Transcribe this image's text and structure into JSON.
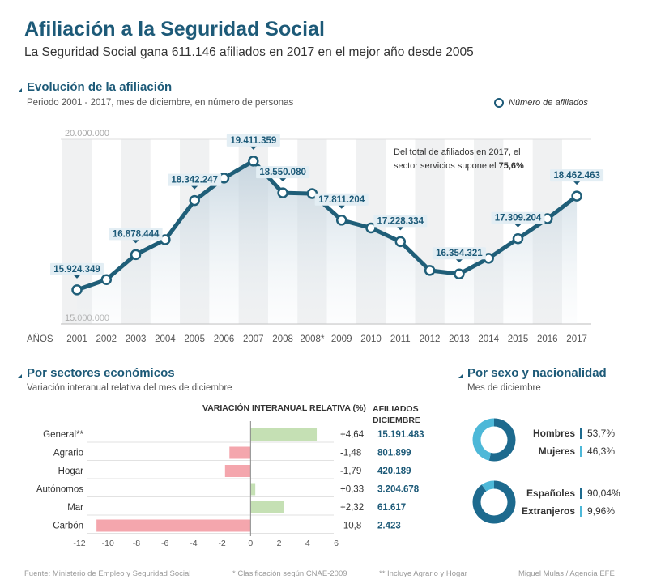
{
  "header": {
    "title": "Afiliación a la Seguridad Social",
    "subtitle": "La Seguridad Social gana 611.146 afiliados en 2017 en el mejor año desde 2005"
  },
  "evolution": {
    "title": "Evolución de la afiliación",
    "subtitle": "Periodo 2001 - 2017, mes de diciembre, en número de personas",
    "legend": "Número de afiliados",
    "note_prefix": "Del total de afiliados en 2017, el sector servicios supone el ",
    "note_value": "75,6%"
  },
  "chart_data": [
    {
      "type": "line",
      "title": "Evolución de la afiliación",
      "xlabel": "AÑOS",
      "ylim": [
        15000000,
        20000000
      ],
      "ytick_labels": [
        "20.000.000",
        "15.000.000"
      ],
      "categories": [
        "2001",
        "2002",
        "2003",
        "2004",
        "2005",
        "2006",
        "2007",
        "2008",
        "2008*",
        "2009",
        "2010",
        "2011",
        "2012",
        "2013",
        "2014",
        "2015",
        "2016",
        "2017"
      ],
      "values": [
        15924349,
        16200000,
        16878444,
        17280000,
        18342247,
        18950000,
        19411359,
        18550080,
        18530000,
        17811204,
        17600000,
        17228334,
        16450000,
        16354321,
        16780000,
        17309204,
        17850000,
        18462463
      ],
      "labels": [
        {
          "index": 0,
          "text": "15.924.349"
        },
        {
          "index": 2,
          "text": "16.878.444"
        },
        {
          "index": 4,
          "text": "18.342.247"
        },
        {
          "index": 6,
          "text": "19.411.359"
        },
        {
          "index": 7,
          "text": "18.550.080"
        },
        {
          "index": 9,
          "text": "17.811.204"
        },
        {
          "index": 11,
          "text": "17.228.334"
        },
        {
          "index": 13,
          "text": "16.354.321"
        },
        {
          "index": 15,
          "text": "17.309.204"
        },
        {
          "index": 17,
          "text": "18.462.463"
        }
      ]
    },
    {
      "type": "bar",
      "title": "Por sectores económicos",
      "xlabel": "VARIACIÓN INTERANUAL RELATIVA (%)",
      "xlim": [
        -12,
        6
      ],
      "xticks": [
        -12,
        -10,
        -8,
        -6,
        -4,
        -2,
        0,
        2,
        4,
        6
      ],
      "xtick_labels": [
        "-12",
        "-10",
        "-8",
        "-6",
        "-4",
        "-2",
        "0",
        "2",
        "4",
        "6"
      ],
      "categories": [
        "General**",
        "Agrario",
        "Hogar",
        "Autónomos",
        "Mar",
        "Carbón"
      ],
      "values": [
        4.64,
        -1.48,
        -1.79,
        0.33,
        2.32,
        -10.8
      ],
      "value_labels": [
        "+4,64",
        "-1,48",
        "-1,79",
        "+0,33",
        "+2,32",
        "-10,8"
      ],
      "afiliados_header": "AFILIADOS DICIEMBRE",
      "afiliados": [
        "15.191.483",
        "801.899",
        "420.189",
        "3.204.678",
        "61.617",
        "2.423"
      ],
      "colors": {
        "positive": "#c5e0b4",
        "negative": "#f4a6ad"
      }
    },
    {
      "type": "pie",
      "title": "Por sexo",
      "categories": [
        "Hombres",
        "Mujeres"
      ],
      "values": [
        53.7,
        46.3
      ],
      "value_labels": [
        "53,7%",
        "46,3%"
      ],
      "colors": [
        "#1d6a8e",
        "#4db8d8"
      ]
    },
    {
      "type": "pie",
      "title": "Por nacionalidad",
      "categories": [
        "Españoles",
        "Extranjeros"
      ],
      "values": [
        90.04,
        9.96
      ],
      "value_labels": [
        "90,04%",
        "9,96%"
      ],
      "colors": [
        "#1d6a8e",
        "#4db8d8"
      ]
    }
  ],
  "sectors": {
    "title": "Por sectores económicos",
    "subtitle": "Variación interanual relativa del mes de diciembre"
  },
  "sexo": {
    "title": "Por sexo y nacionalidad",
    "subtitle": "Mes de diciembre"
  },
  "footer": {
    "source": "Fuente: Ministerio de Empleo y Seguridad Social",
    "note1": "* Clasificación según CNAE-2009",
    "note2": "** Incluye Agrario y Hogar",
    "credit": "Miguel Mulas / Agencia EFE"
  },
  "colors": {
    "primary": "#1d5a78",
    "line": "#1f5e78",
    "accent": "#4db8d8",
    "label_bg": "#e3eef4"
  }
}
